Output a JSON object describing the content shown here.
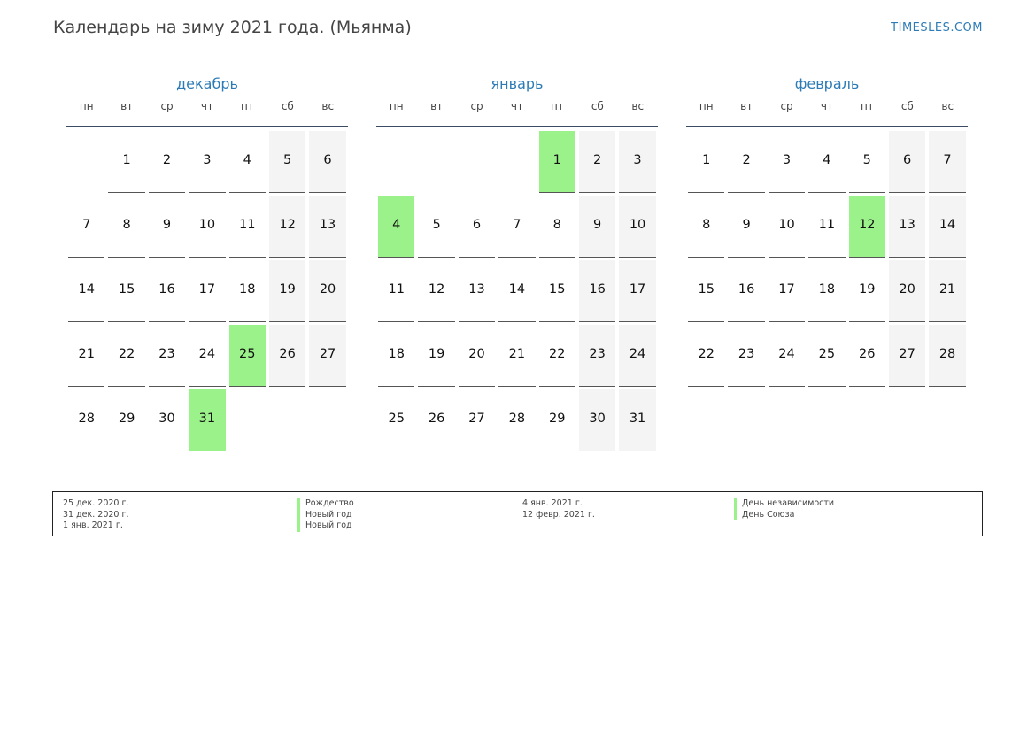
{
  "title": "Календарь на зиму 2021 года. (Мьянма)",
  "site": "TIMESLES.COM",
  "weekdays": [
    "пн",
    "вт",
    "ср",
    "чт",
    "пт",
    "сб",
    "вс"
  ],
  "colors": {
    "holiday": "#9cf28a",
    "weekend": "#f4f4f4",
    "accent": "#2c7bb6"
  },
  "months": [
    {
      "name": "декабрь",
      "weeks": [
        [
          "",
          "1",
          "2",
          "3",
          "4",
          "5",
          "6"
        ],
        [
          "7",
          "8",
          "9",
          "10",
          "11",
          "12",
          "13"
        ],
        [
          "14",
          "15",
          "16",
          "17",
          "18",
          "19",
          "20"
        ],
        [
          "21",
          "22",
          "23",
          "24",
          "25",
          "26",
          "27"
        ],
        [
          "28",
          "29",
          "30",
          "31",
          "",
          "",
          ""
        ]
      ],
      "holidays": [
        "25",
        "31"
      ]
    },
    {
      "name": "январь",
      "weeks": [
        [
          "",
          "",
          "",
          "",
          "1",
          "2",
          "3"
        ],
        [
          "4",
          "5",
          "6",
          "7",
          "8",
          "9",
          "10"
        ],
        [
          "11",
          "12",
          "13",
          "14",
          "15",
          "16",
          "17"
        ],
        [
          "18",
          "19",
          "20",
          "21",
          "22",
          "23",
          "24"
        ],
        [
          "25",
          "26",
          "27",
          "28",
          "29",
          "30",
          "31"
        ]
      ],
      "holidays": [
        "1",
        "4"
      ]
    },
    {
      "name": "февраль",
      "weeks": [
        [
          "1",
          "2",
          "3",
          "4",
          "5",
          "6",
          "7"
        ],
        [
          "8",
          "9",
          "10",
          "11",
          "12",
          "13",
          "14"
        ],
        [
          "15",
          "16",
          "17",
          "18",
          "19",
          "20",
          "21"
        ],
        [
          "22",
          "23",
          "24",
          "25",
          "26",
          "27",
          "28"
        ]
      ],
      "holidays": [
        "12"
      ]
    }
  ],
  "legend": [
    [
      {
        "date": "25 дек. 2020 г.",
        "name": "Рождество"
      },
      {
        "date": "31 дек. 2020 г.",
        "name": "Новый год"
      },
      {
        "date": "1 янв. 2021 г.",
        "name": "Новый год"
      }
    ],
    [
      {
        "date": "4 янв. 2021 г.",
        "name": "День независимости"
      },
      {
        "date": "12 февр. 2021 г.",
        "name": "День Союза"
      }
    ]
  ]
}
